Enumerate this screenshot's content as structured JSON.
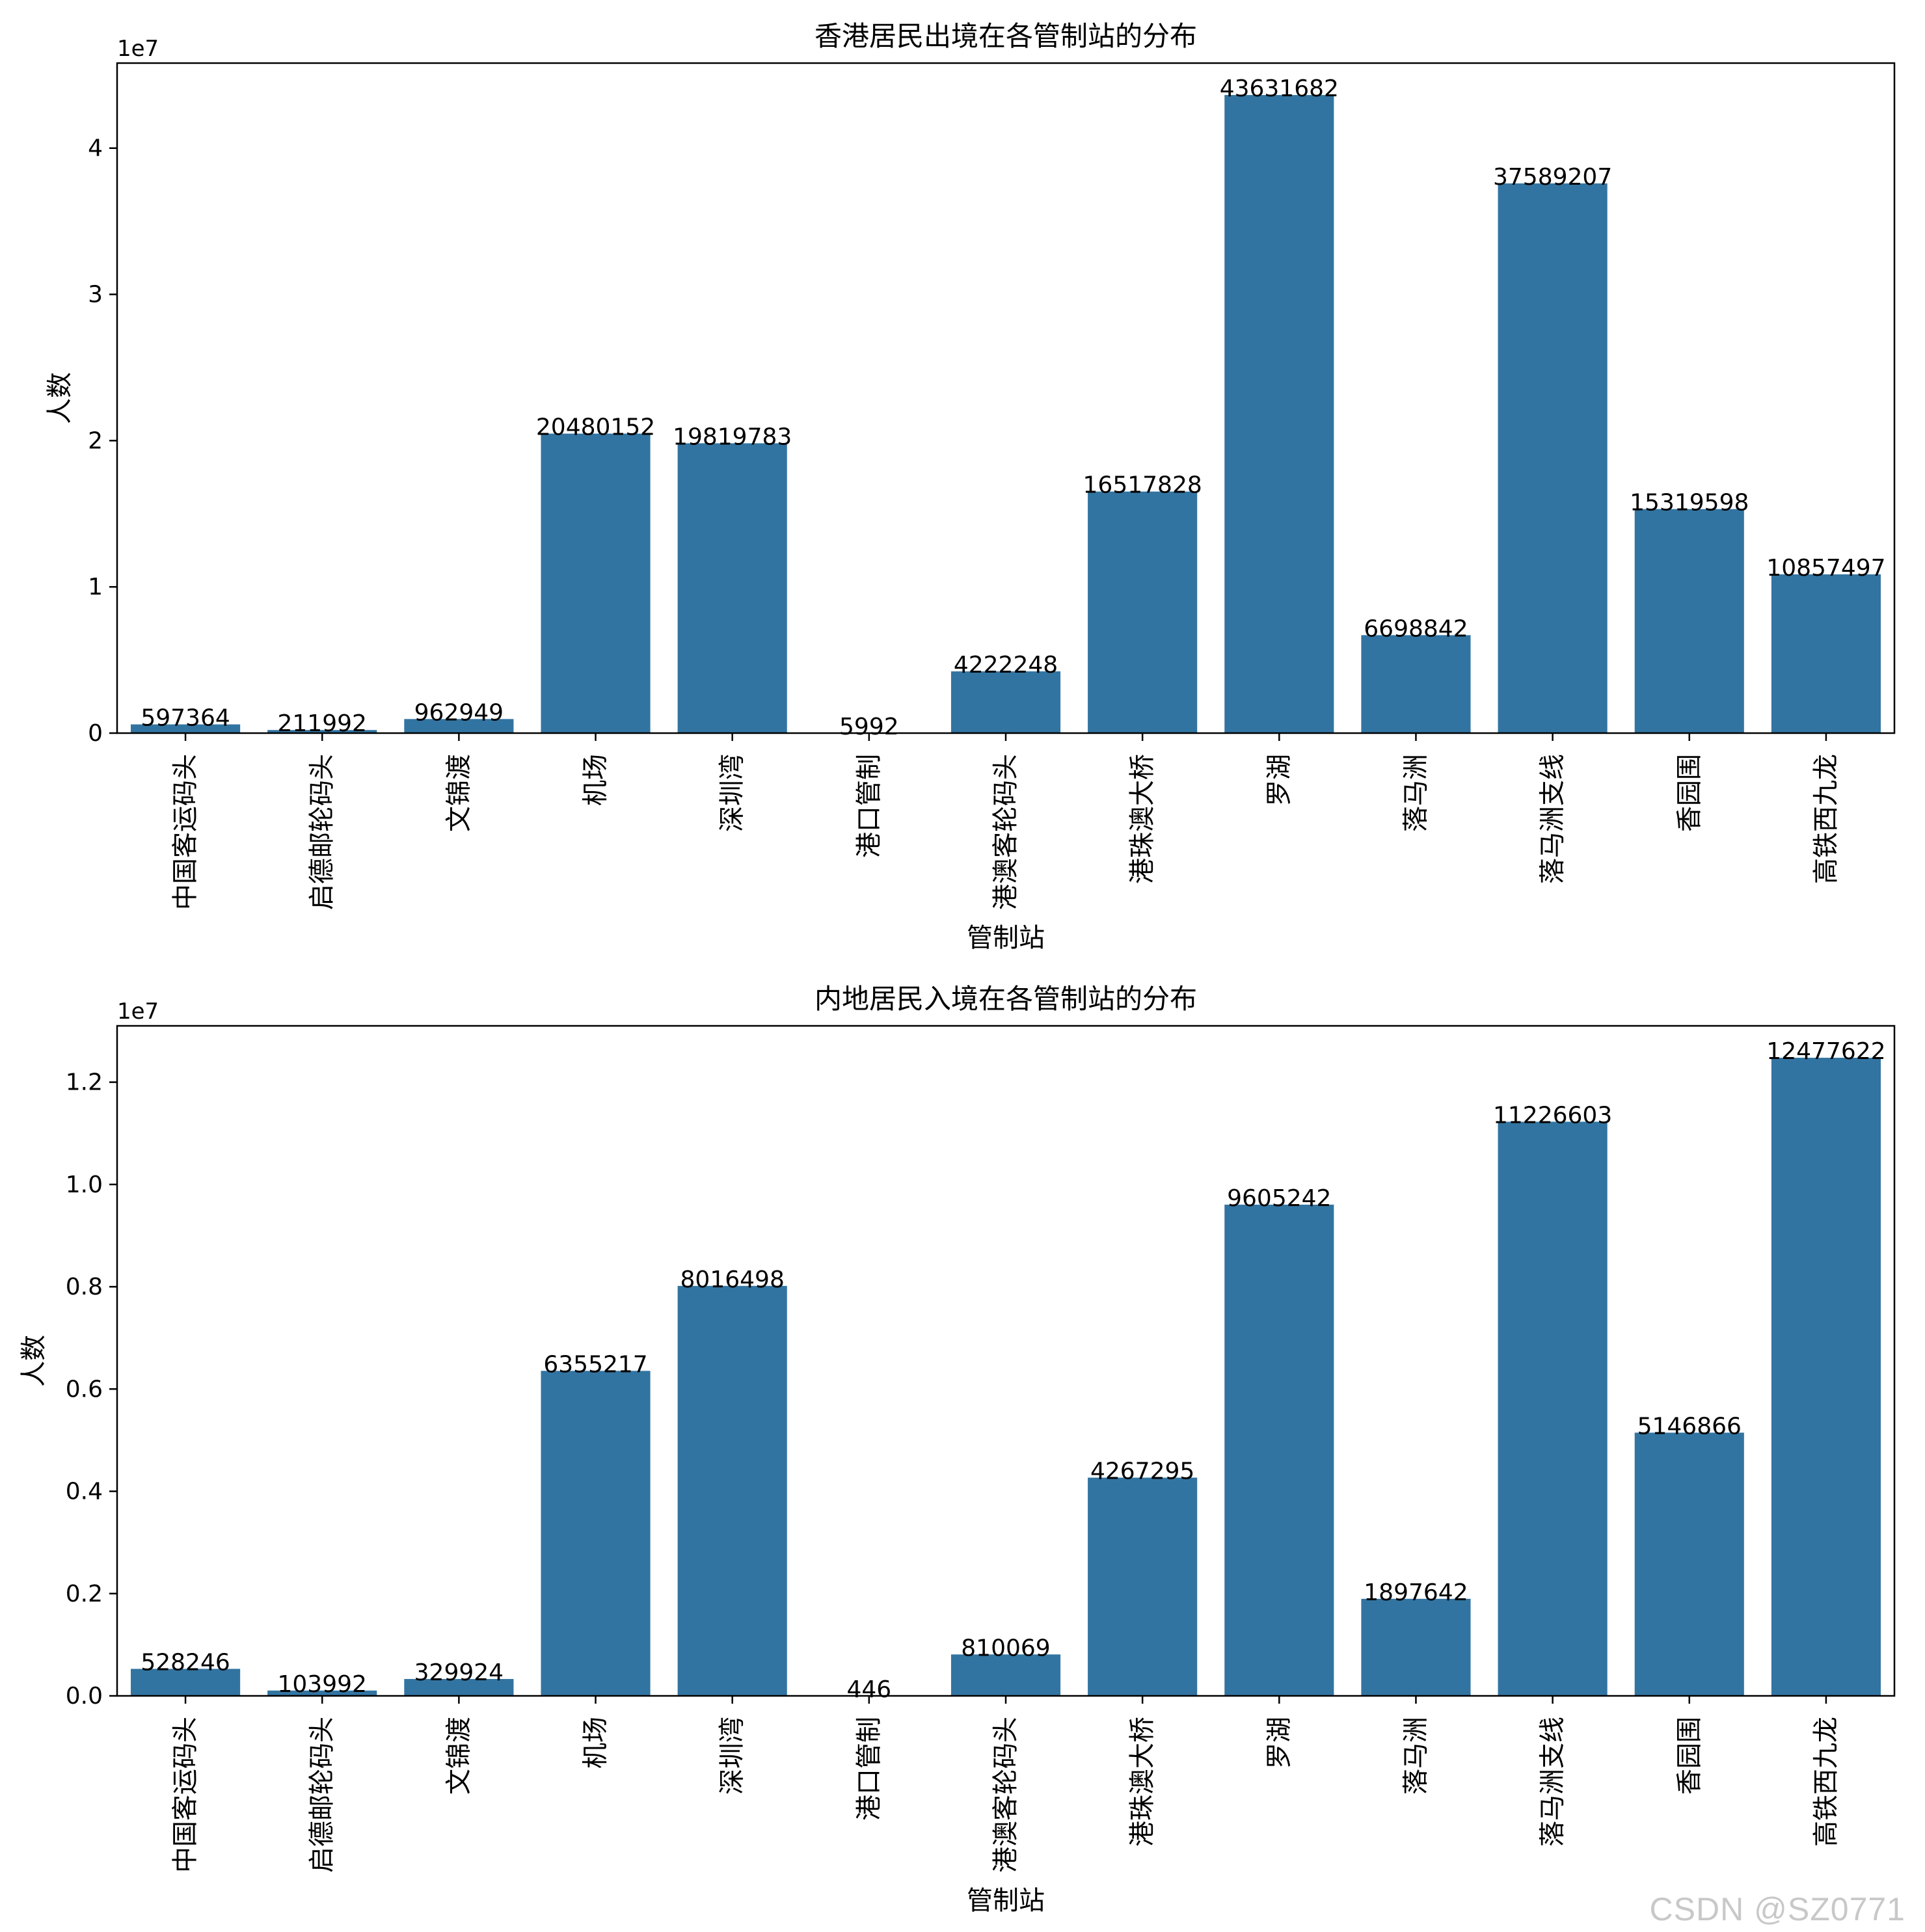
{
  "chart_data": [
    {
      "type": "bar",
      "title": "香港居民出境在各管制站的分布",
      "xlabel": "管制站",
      "ylabel": "人数",
      "scale_label": "1e7",
      "ylim": [
        0,
        45815000
      ],
      "yticks": [
        0,
        10000000,
        20000000,
        30000000,
        40000000
      ],
      "ytick_labels": [
        "0",
        "1",
        "2",
        "3",
        "4"
      ],
      "color": "#3274a1",
      "categories": [
        "中国客运码头",
        "启德邮轮码头",
        "文锦渡",
        "机场",
        "深圳湾",
        "港口管制",
        "港澳客轮码头",
        "港珠澳大桥",
        "罗湖",
        "落马洲",
        "落马洲支线",
        "香园围",
        "高铁西九龙"
      ],
      "values": [
        597364,
        211992,
        962949,
        20480152,
        19819783,
        5992,
        4222248,
        16517828,
        43631682,
        6698842,
        37589207,
        15319598,
        10857497
      ],
      "value_labels": [
        "597364",
        "211992",
        "962949",
        "20480152",
        "19819783",
        "5992",
        "4222248",
        "16517828",
        "43631682",
        "6698842",
        "37589207",
        "15319598",
        "10857497"
      ]
    },
    {
      "type": "bar",
      "title": "内地居民入境在各管制站的分布",
      "xlabel": "管制站",
      "ylabel": "人数",
      "scale_label": "1e7",
      "ylim": [
        0,
        13101500
      ],
      "yticks": [
        0,
        2000000,
        4000000,
        6000000,
        8000000,
        10000000,
        12000000
      ],
      "ytick_labels": [
        "0.0",
        "0.2",
        "0.4",
        "0.6",
        "0.8",
        "1.0",
        "1.2"
      ],
      "color": "#3274a1",
      "categories": [
        "中国客运码头",
        "启德邮轮码头",
        "文锦渡",
        "机场",
        "深圳湾",
        "港口管制",
        "港澳客轮码头",
        "港珠澳大桥",
        "罗湖",
        "落马洲",
        "落马洲支线",
        "香园围",
        "高铁西九龙"
      ],
      "values": [
        528246,
        103992,
        329924,
        6355217,
        8016498,
        446,
        810069,
        4267295,
        9605242,
        1897642,
        11226603,
        5146866,
        12477622
      ],
      "value_labels": [
        "528246",
        "103992",
        "329924",
        "6355217",
        "8016498",
        "446",
        "810069",
        "4267295",
        "9605242",
        "1897642",
        "11226603",
        "5146866",
        "12477622"
      ]
    }
  ],
  "watermark": "CSDN @SZ0771"
}
